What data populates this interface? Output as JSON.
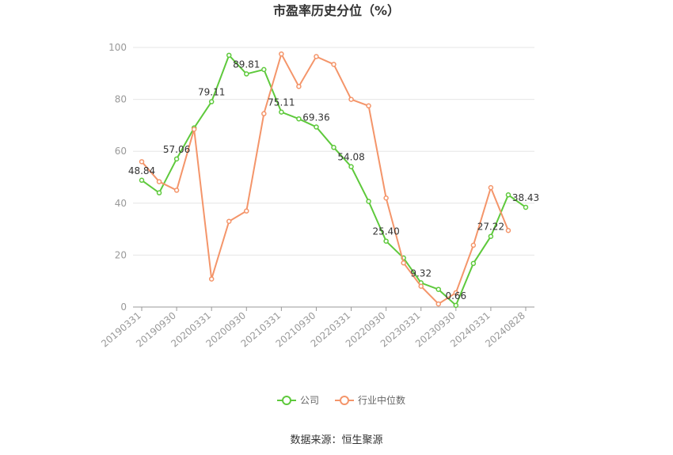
{
  "chart_data": {
    "type": "line",
    "title": "市盈率历史分位（%）",
    "source": "数据来源：恒生聚源",
    "ylim": [
      0,
      100
    ],
    "yticks": [
      0,
      20,
      40,
      60,
      80,
      100
    ],
    "x_tick_labels": [
      "20190331",
      "20190930",
      "20200331",
      "20200930",
      "20210331",
      "20210930",
      "20220331",
      "20220930",
      "20230331",
      "20230930",
      "20240331",
      "20240828"
    ],
    "x": [
      "20190331",
      "20190630",
      "20190930",
      "20191231",
      "20200331",
      "20200630",
      "20200930",
      "20201231",
      "20210331",
      "20210630",
      "20210930",
      "20211231",
      "20220331",
      "20220630",
      "20220930",
      "20221231",
      "20230331",
      "20230630",
      "20230930",
      "20231231",
      "20240331",
      "20240630",
      "20240828"
    ],
    "series": [
      {
        "name": "公司",
        "color": "#5ec93c",
        "values": [
          48.84,
          44.0,
          57.06,
          69.0,
          79.11,
          97.0,
          89.81,
          91.5,
          75.11,
          72.5,
          69.36,
          61.5,
          54.08,
          40.7,
          25.4,
          18.9,
          9.32,
          6.8,
          0.66,
          16.8,
          27.22,
          43.2,
          38.43
        ]
      },
      {
        "name": "行业中位数",
        "color": "#f4956a",
        "values": [
          56.0,
          48.3,
          45.0,
          68.5,
          10.8,
          33.0,
          37.0,
          74.5,
          97.5,
          85.0,
          96.5,
          93.5,
          80.0,
          77.5,
          42.0,
          17.0,
          8.0,
          1.2,
          5.5,
          23.8,
          46.0,
          29.5,
          null
        ]
      }
    ],
    "data_labels": [
      {
        "index": 0,
        "text": "48.84"
      },
      {
        "index": 2,
        "text": "57.06"
      },
      {
        "index": 4,
        "text": "79.11"
      },
      {
        "index": 6,
        "text": "89.81"
      },
      {
        "index": 8,
        "text": "75.11"
      },
      {
        "index": 10,
        "text": "69.36"
      },
      {
        "index": 12,
        "text": "54.08"
      },
      {
        "index": 14,
        "text": "25.40"
      },
      {
        "index": 16,
        "text": "9.32"
      },
      {
        "index": 18,
        "text": "0.66"
      },
      {
        "index": 20,
        "text": "27.22"
      },
      {
        "index": 22,
        "text": "38.43"
      }
    ],
    "legend_position": "bottom",
    "grid": true
  }
}
